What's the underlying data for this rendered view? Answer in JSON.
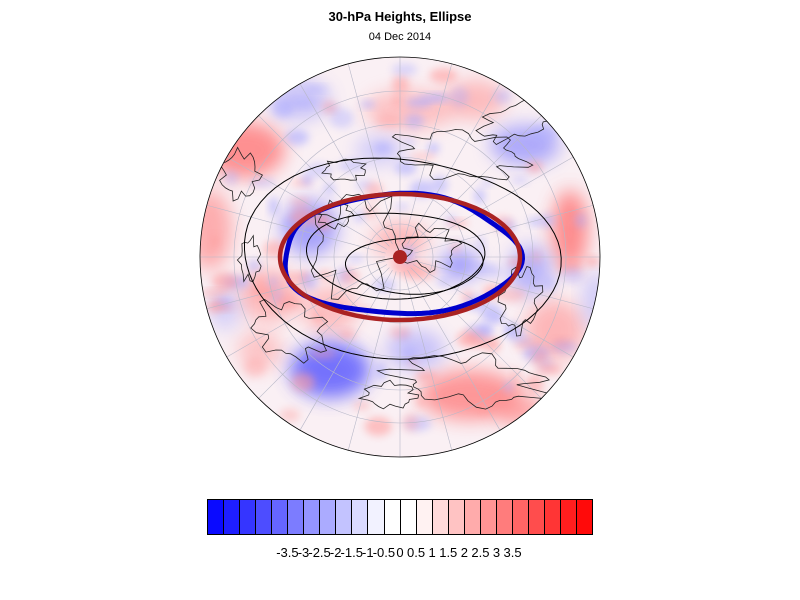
{
  "title": "30-hPa Heights, Ellipse",
  "date": "04 Dec 2014",
  "colorbar": {
    "labels": [
      "-3.5",
      "-3",
      "-2.5",
      "-2",
      "-1.5",
      "-1",
      "-0.5",
      "0",
      "0.5",
      "1",
      "1.5",
      "2",
      "2.5",
      "3",
      "3.5"
    ],
    "colors": [
      "#0a0aff",
      "#1e1eff",
      "#3535ff",
      "#4d4dff",
      "#6565ff",
      "#7c7cff",
      "#9494ff",
      "#ababff",
      "#c3c3ff",
      "#dadaff",
      "#f2f2ff",
      "#ffffff",
      "#ffffff",
      "#fff2f2",
      "#ffdada",
      "#ffc3c3",
      "#ffabab",
      "#ff9494",
      "#ff7c7c",
      "#ff6565",
      "#ff4d4d",
      "#ff3535",
      "#ff1e1e",
      "#ff0a0a"
    ]
  },
  "legend_colors": {
    "observed_vortex_edge": "#0000cc",
    "fitted_ellipse": "#aa2222",
    "centroid": "#aa2222",
    "contours": "#000000"
  }
}
